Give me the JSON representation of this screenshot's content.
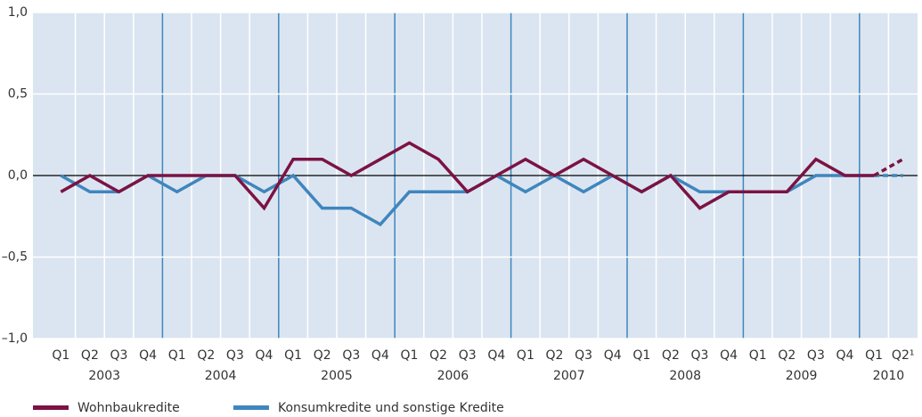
{
  "chart_data": {
    "type": "line",
    "categories": [
      "Q1",
      "Q2",
      "Q3",
      "Q4",
      "Q1",
      "Q2",
      "Q3",
      "Q4",
      "Q1",
      "Q2",
      "Q3",
      "Q4",
      "Q1",
      "Q2",
      "Q3",
      "Q4",
      "Q1",
      "Q2",
      "Q3",
      "Q4",
      "Q1",
      "Q2",
      "Q3",
      "Q4",
      "Q1",
      "Q2",
      "Q3",
      "Q4",
      "Q1",
      "Q2¹"
    ],
    "years": [
      "2003",
      "2004",
      "2005",
      "2006",
      "2007",
      "2008",
      "2009",
      "2010"
    ],
    "series": [
      {
        "name": "Wohnbaukredite",
        "color": "#7b1343",
        "values": [
          -0.1,
          0,
          -0.1,
          0,
          0,
          0,
          0,
          -0.2,
          0.1,
          0.1,
          0,
          0.1,
          0.2,
          0.1,
          -0.1,
          0,
          0.1,
          0,
          0.1,
          0,
          -0.1,
          0,
          -0.2,
          -0.1,
          -0.1,
          -0.1,
          0.1,
          0,
          0,
          0.1
        ]
      },
      {
        "name": "Konsumkredite und sonstige Kredite",
        "color": "#3f86bd",
        "values": [
          0,
          -0.1,
          -0.1,
          0,
          -0.1,
          0,
          0,
          -0.1,
          0,
          -0.2,
          -0.2,
          -0.3,
          -0.1,
          -0.1,
          -0.1,
          0,
          -0.1,
          0,
          -0.1,
          0,
          -0.1,
          0,
          -0.1,
          -0.1,
          -0.1,
          -0.1,
          0,
          0,
          0,
          0
        ]
      }
    ],
    "ylim": [
      -1,
      1
    ],
    "yticks": [
      {
        "value": -1,
        "label": "–1,0"
      },
      {
        "value": -0.5,
        "label": "–0,5"
      },
      {
        "value": 0,
        "label": "0,0"
      },
      {
        "value": 0.5,
        "label": "0,5"
      },
      {
        "value": 1,
        "label": "1,0"
      }
    ],
    "grid": true,
    "dashed_last_segment": true
  }
}
